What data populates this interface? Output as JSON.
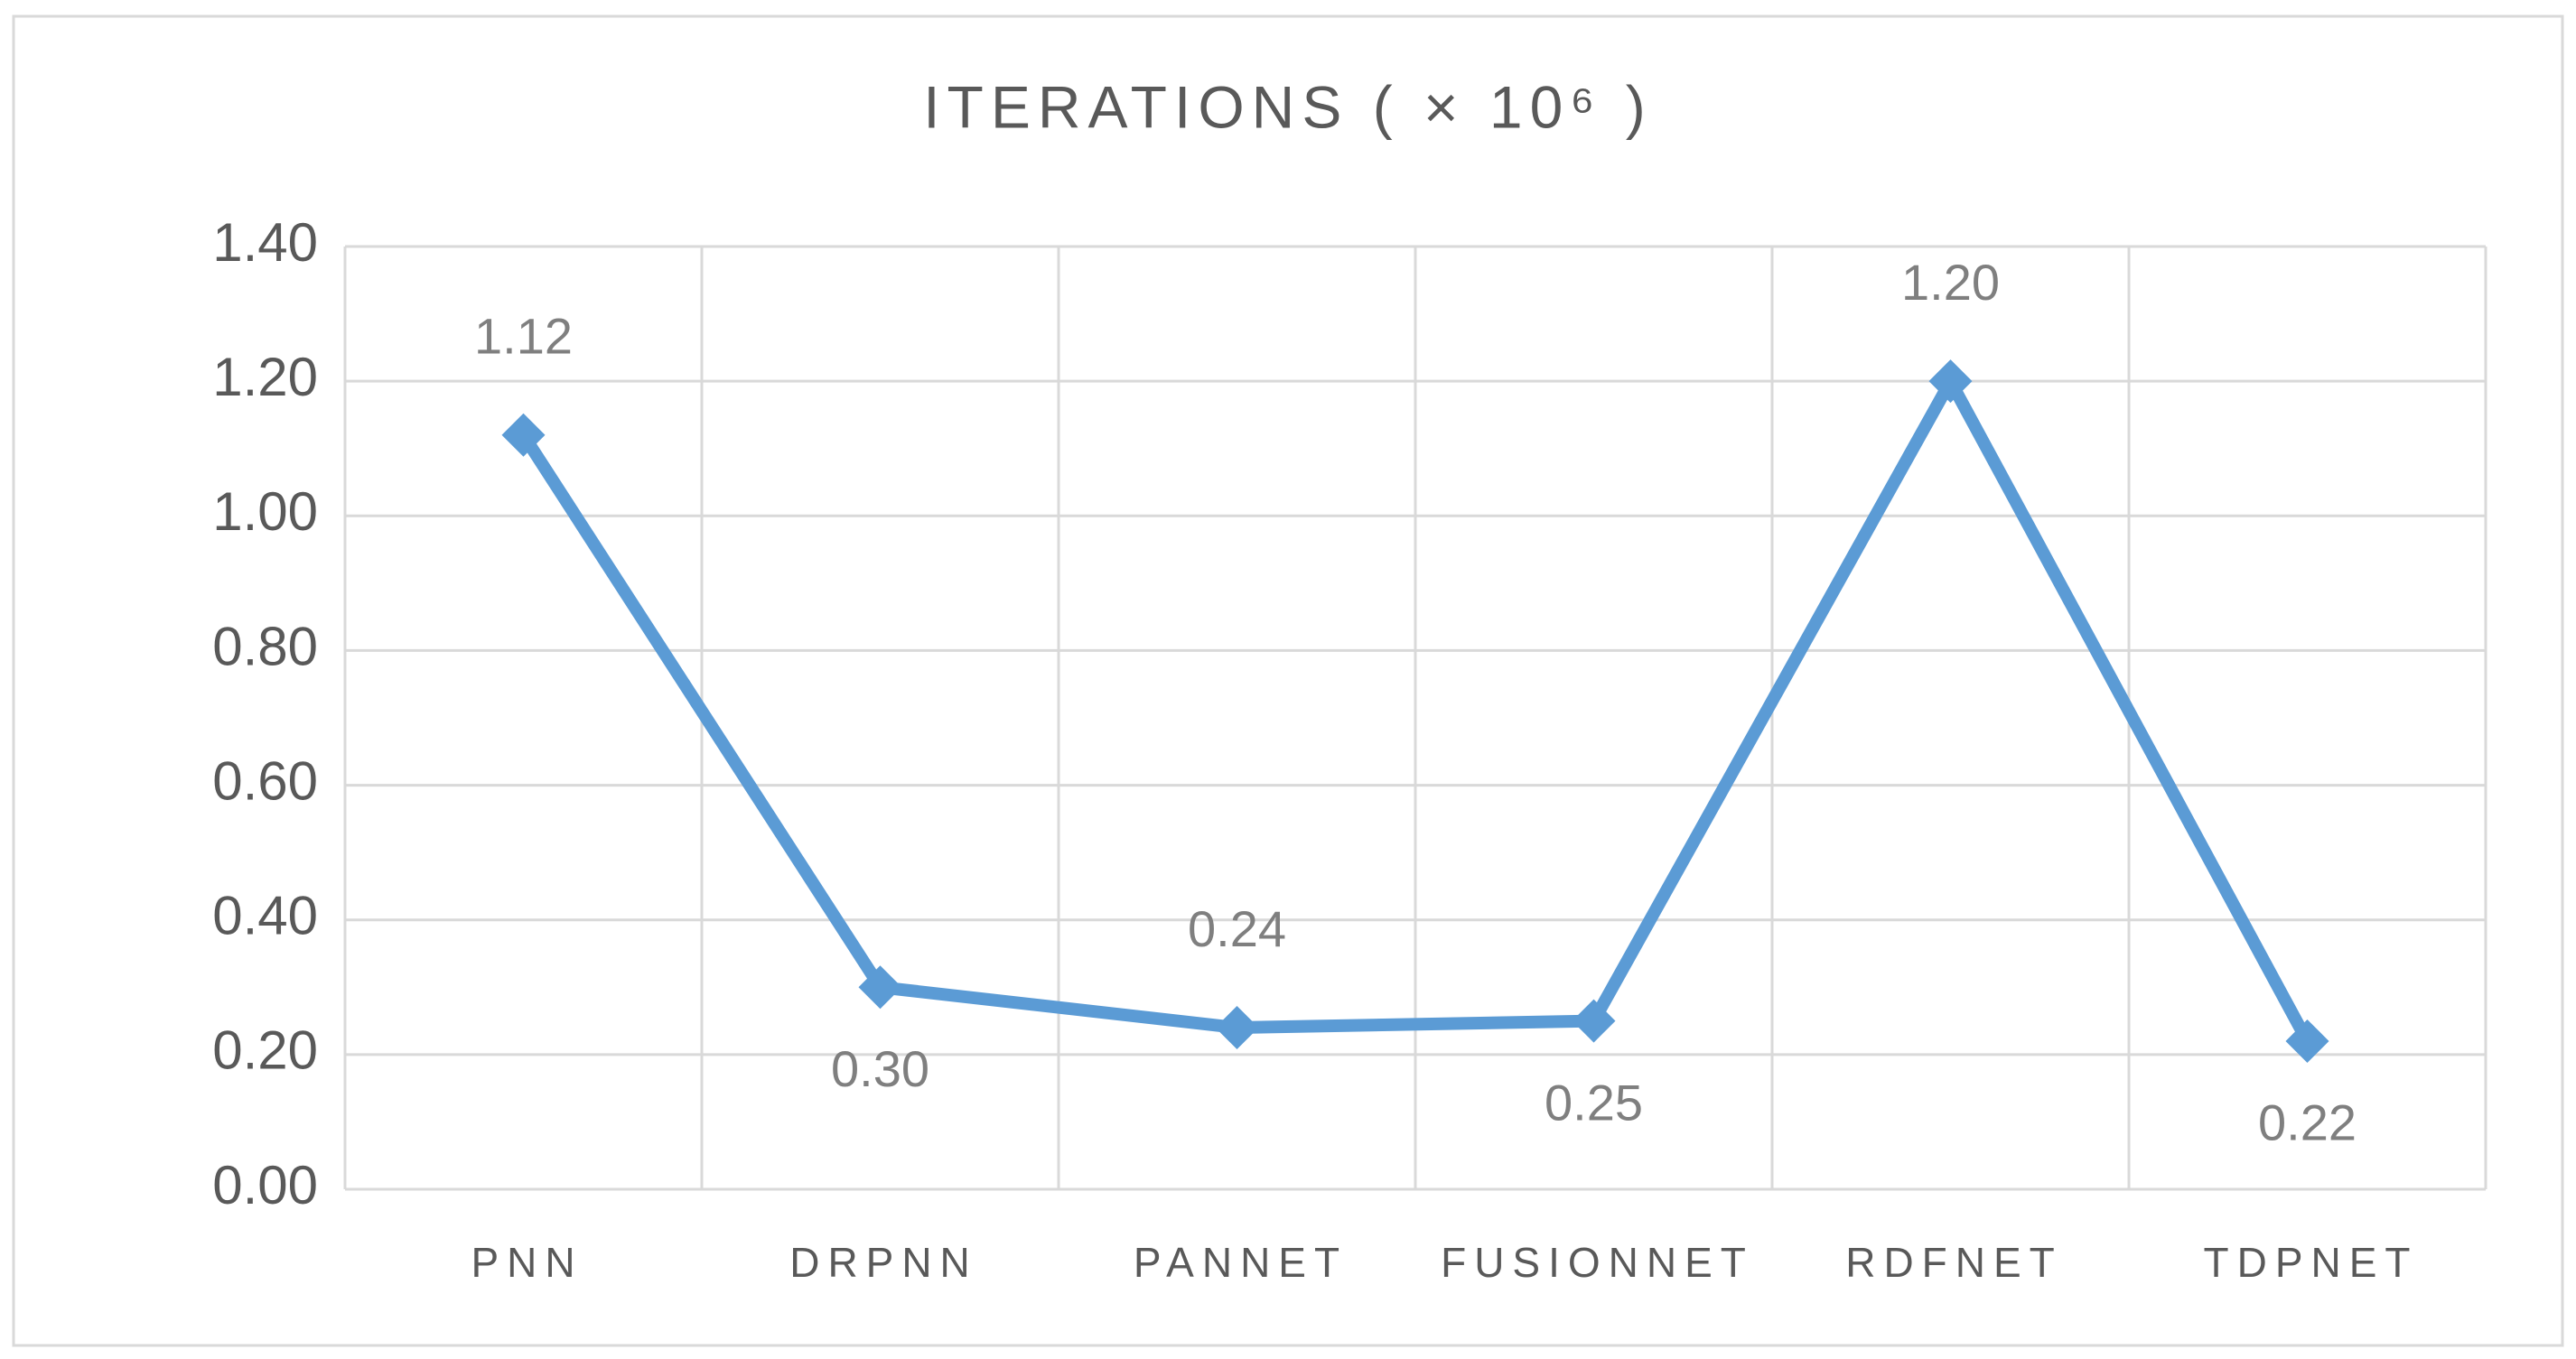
{
  "chart_data": {
    "type": "line",
    "title": "ITERATIONS ( × 10⁶ )",
    "categories": [
      "PNN",
      "DRPNN",
      "PANNET",
      "FUSIONNET",
      "RDFNET",
      "TDPNET"
    ],
    "values": [
      1.12,
      0.3,
      0.24,
      0.25,
      1.2,
      0.22
    ],
    "value_labels": [
      "1.12",
      "0.30",
      "0.24",
      "0.25",
      "1.20",
      "0.22"
    ],
    "color": "#5b9bd5",
    "ylim": [
      0,
      1.4
    ],
    "yticks": [
      {
        "value": 0,
        "label": "0.00"
      },
      {
        "value": 0.2,
        "label": "0.20"
      },
      {
        "value": 0.4,
        "label": "0.40"
      },
      {
        "value": 0.6,
        "label": "0.60"
      },
      {
        "value": 0.8,
        "label": "0.80"
      },
      {
        "value": 1.0,
        "label": "1.00"
      },
      {
        "value": 1.2,
        "label": "1.20"
      },
      {
        "value": 1.4,
        "label": "1.40"
      }
    ],
    "grid": true
  }
}
